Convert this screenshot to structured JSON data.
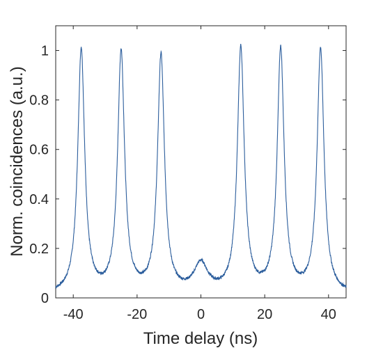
{
  "chart_data": {
    "type": "line",
    "title": "",
    "xlabel": "Time delay (ns)",
    "ylabel": "Norm. coincidences (a.u.)",
    "xlim": [
      -45.5,
      45.5
    ],
    "ylim": [
      0,
      1.1
    ],
    "xticks": [
      -40,
      -20,
      0,
      20,
      40
    ],
    "yticks": [
      0,
      0.2,
      0.4,
      0.6,
      0.8,
      1
    ],
    "xtick_labels": [
      "-40",
      "-20",
      "0",
      "20",
      "40"
    ],
    "ytick_labels": [
      "0",
      "0.2",
      "0.4",
      "0.6",
      "0.8",
      "1"
    ],
    "grid": false,
    "legend": "none",
    "line_color": "#2b5d9c",
    "baseline": 0.012,
    "peaks": [
      {
        "x": -37.5,
        "y": 1.0
      },
      {
        "x": -25.0,
        "y": 0.985
      },
      {
        "x": -12.5,
        "y": 0.97
      },
      {
        "x": 0.0,
        "y": 0.125
      },
      {
        "x": 12.5,
        "y": 1.0
      },
      {
        "x": 25.0,
        "y": 0.995
      },
      {
        "x": 37.5,
        "y": 1.0
      }
    ]
  }
}
